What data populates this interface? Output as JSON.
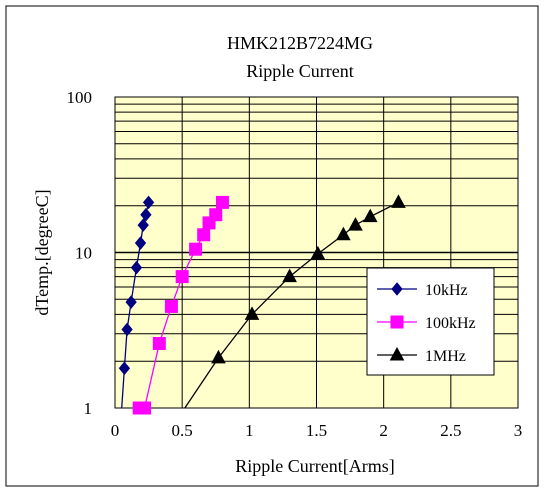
{
  "chart_data": {
    "type": "line",
    "title": "HMK212B7224MG",
    "subtitle": "Ripple Current",
    "xlabel": "Ripple Current[Arms]",
    "ylabel": "dTemp.[degreeC]",
    "xlim": [
      0,
      3
    ],
    "ylim": [
      1,
      100
    ],
    "yscale": "log",
    "x_ticks": [
      "0",
      "0.5",
      "1",
      "1.5",
      "2",
      "2.5",
      "3"
    ],
    "y_ticks": [
      "1",
      "10",
      "100"
    ],
    "grid": true,
    "legend_position": "right",
    "plot_background": "#ffffcc",
    "series": [
      {
        "name": "10kHz",
        "color": "#000080",
        "marker": "diamond",
        "points": [
          {
            "x": 0.05,
            "y": 1.0
          },
          {
            "x": 0.07,
            "y": 1.8
          },
          {
            "x": 0.09,
            "y": 3.2
          },
          {
            "x": 0.12,
            "y": 4.8
          },
          {
            "x": 0.16,
            "y": 8.0
          },
          {
            "x": 0.19,
            "y": 11.5
          },
          {
            "x": 0.21,
            "y": 15.0
          },
          {
            "x": 0.23,
            "y": 17.5
          },
          {
            "x": 0.25,
            "y": 21.0
          }
        ]
      },
      {
        "name": "100kHz",
        "color": "#ff00ff",
        "marker": "square",
        "points": [
          {
            "x": 0.18,
            "y": 1.0
          },
          {
            "x": 0.22,
            "y": 1.0
          },
          {
            "x": 0.33,
            "y": 2.6
          },
          {
            "x": 0.42,
            "y": 4.5
          },
          {
            "x": 0.5,
            "y": 7.0
          },
          {
            "x": 0.6,
            "y": 10.5
          },
          {
            "x": 0.66,
            "y": 13.0
          },
          {
            "x": 0.7,
            "y": 15.5
          },
          {
            "x": 0.75,
            "y": 17.5
          },
          {
            "x": 0.8,
            "y": 21.0
          }
        ]
      },
      {
        "name": "1MHz",
        "color": "#000000",
        "marker": "triangle",
        "points": [
          {
            "x": 0.52,
            "y": 1.0
          },
          {
            "x": 0.77,
            "y": 2.1
          },
          {
            "x": 1.02,
            "y": 4.0
          },
          {
            "x": 1.3,
            "y": 7.0
          },
          {
            "x": 1.51,
            "y": 9.8
          },
          {
            "x": 1.7,
            "y": 13.0
          },
          {
            "x": 1.79,
            "y": 15.0
          },
          {
            "x": 1.9,
            "y": 17.0
          },
          {
            "x": 2.11,
            "y": 21.0
          }
        ]
      }
    ]
  }
}
